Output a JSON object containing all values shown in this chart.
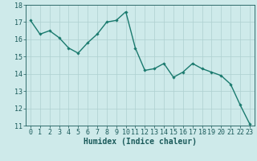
{
  "x": [
    0,
    1,
    2,
    3,
    4,
    5,
    6,
    7,
    8,
    9,
    10,
    11,
    12,
    13,
    14,
    15,
    16,
    17,
    18,
    19,
    20,
    21,
    22,
    23
  ],
  "y": [
    17.1,
    16.3,
    16.5,
    16.1,
    15.5,
    15.2,
    15.8,
    16.3,
    17.0,
    17.1,
    17.6,
    15.5,
    14.2,
    14.3,
    14.6,
    13.8,
    14.1,
    14.6,
    14.3,
    14.1,
    13.9,
    13.4,
    12.2,
    11.1
  ],
  "line_color": "#1a7a6e",
  "marker": "D",
  "marker_size": 1.8,
  "bg_color": "#ceeaea",
  "grid_color": "#aed0d0",
  "tick_color": "#1a5a5a",
  "xlabel": "Humidex (Indice chaleur)",
  "xlim": [
    -0.5,
    23.5
  ],
  "ylim": [
    11,
    18
  ],
  "yticks": [
    11,
    12,
    13,
    14,
    15,
    16,
    17,
    18
  ],
  "xticks": [
    0,
    1,
    2,
    3,
    4,
    5,
    6,
    7,
    8,
    9,
    10,
    11,
    12,
    13,
    14,
    15,
    16,
    17,
    18,
    19,
    20,
    21,
    22,
    23
  ],
  "xlabel_fontsize": 7.0,
  "tick_fontsize": 6.0,
  "linewidth": 1.0
}
